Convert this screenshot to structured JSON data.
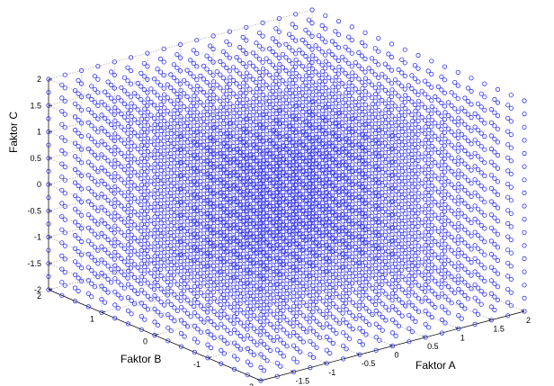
{
  "chart_data": {
    "type": "scatter",
    "projection": "3d",
    "title": "",
    "xlabel": "Faktor A",
    "ylabel": "Faktor B",
    "zlabel": "Faktor C",
    "xlim": [
      -2,
      2
    ],
    "ylim": [
      -2,
      2
    ],
    "zlim": [
      -2,
      2
    ],
    "x_ticks": [
      "-2",
      "-1.5",
      "-1",
      "-0.5",
      "0",
      "0.5",
      "1",
      "1.5",
      "2"
    ],
    "y_ticks": [
      "-2",
      "-1",
      "0",
      "1",
      "2"
    ],
    "z_ticks": [
      "-2",
      "-1.5",
      "-1",
      "-0.5",
      "0",
      "0.5",
      "1",
      "1.5",
      "2"
    ],
    "grid": true,
    "marker": "o",
    "marker_color": "#3333ee",
    "points": {
      "description_of_grid": "regular lattice",
      "x_values": [
        -2,
        -1.75,
        -1.5,
        -1.25,
        -1,
        -0.75,
        -0.5,
        -0.25,
        0,
        0.25,
        0.5,
        0.75,
        1,
        1.25,
        1.5,
        1.75,
        2
      ],
      "y_values": [
        -2,
        -1.75,
        -1.5,
        -1.25,
        -1,
        -0.75,
        -0.5,
        -0.25,
        0,
        0.25,
        0.5,
        0.75,
        1,
        1.25,
        1.5,
        1.75,
        2
      ],
      "z_values": [
        -2,
        -1.75,
        -1.5,
        -1.25,
        -1,
        -0.75,
        -0.5,
        -0.25,
        0,
        0.25,
        0.5,
        0.75,
        1,
        1.25,
        1.5,
        1.75,
        2
      ]
    }
  }
}
